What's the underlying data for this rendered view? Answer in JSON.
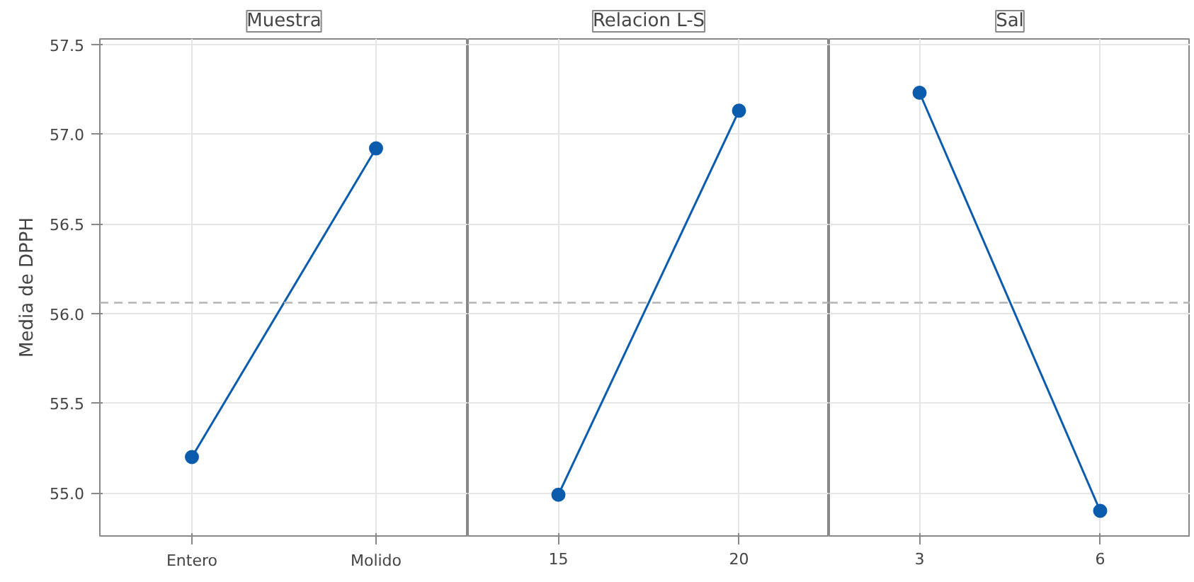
{
  "chart_data": [
    {
      "type": "line",
      "title": "Muestra",
      "ylabel": "Media de DPPH",
      "categories": [
        "Entero",
        "Molido"
      ],
      "series": [
        {
          "color": "#0b5cad",
          "values": [
            55.2,
            56.92
          ]
        }
      ],
      "ylim": [
        54.76,
        57.53
      ],
      "yticks": [
        {
          "value": 55,
          "label": "55.0"
        },
        {
          "value": 55.5,
          "label": "55.5"
        },
        {
          "value": 56,
          "label": "56.0"
        },
        {
          "value": 56.5,
          "label": "56.5"
        },
        {
          "value": 57,
          "label": "57.0"
        },
        {
          "value": 57.5,
          "label": "57.5"
        }
      ],
      "ref_lines": [
        {
          "axis": "y",
          "value": 56.06,
          "label": null,
          "color": "#b4b4b4",
          "line_style": "dashed"
        }
      ],
      "grid": true,
      "marker": "circle",
      "line_style": "solid"
    },
    {
      "type": "line",
      "title": "Relacion L-S",
      "categories": [
        "15",
        "20"
      ],
      "series": [
        {
          "color": "#0b5cad",
          "values": [
            54.99,
            57.13
          ]
        }
      ],
      "ylim": [
        54.76,
        57.53
      ],
      "ref_lines": [
        {
          "axis": "y",
          "value": 56.06,
          "label": null,
          "color": "#b4b4b4",
          "line_style": "dashed"
        }
      ],
      "grid": true,
      "marker": "circle",
      "line_style": "solid",
      "tick_labels": "x"
    },
    {
      "type": "line",
      "title": "Sal",
      "categories": [
        "3",
        "6"
      ],
      "series": [
        {
          "color": "#0b5cad",
          "values": [
            57.23,
            54.9
          ]
        }
      ],
      "ylim": [
        54.76,
        57.53
      ],
      "ref_lines": [
        {
          "axis": "y",
          "value": 56.06,
          "label": null,
          "color": "#b4b4b4",
          "line_style": "dashed"
        }
      ],
      "grid": true,
      "marker": "circle",
      "line_style": "solid",
      "tick_labels": "x"
    }
  ]
}
